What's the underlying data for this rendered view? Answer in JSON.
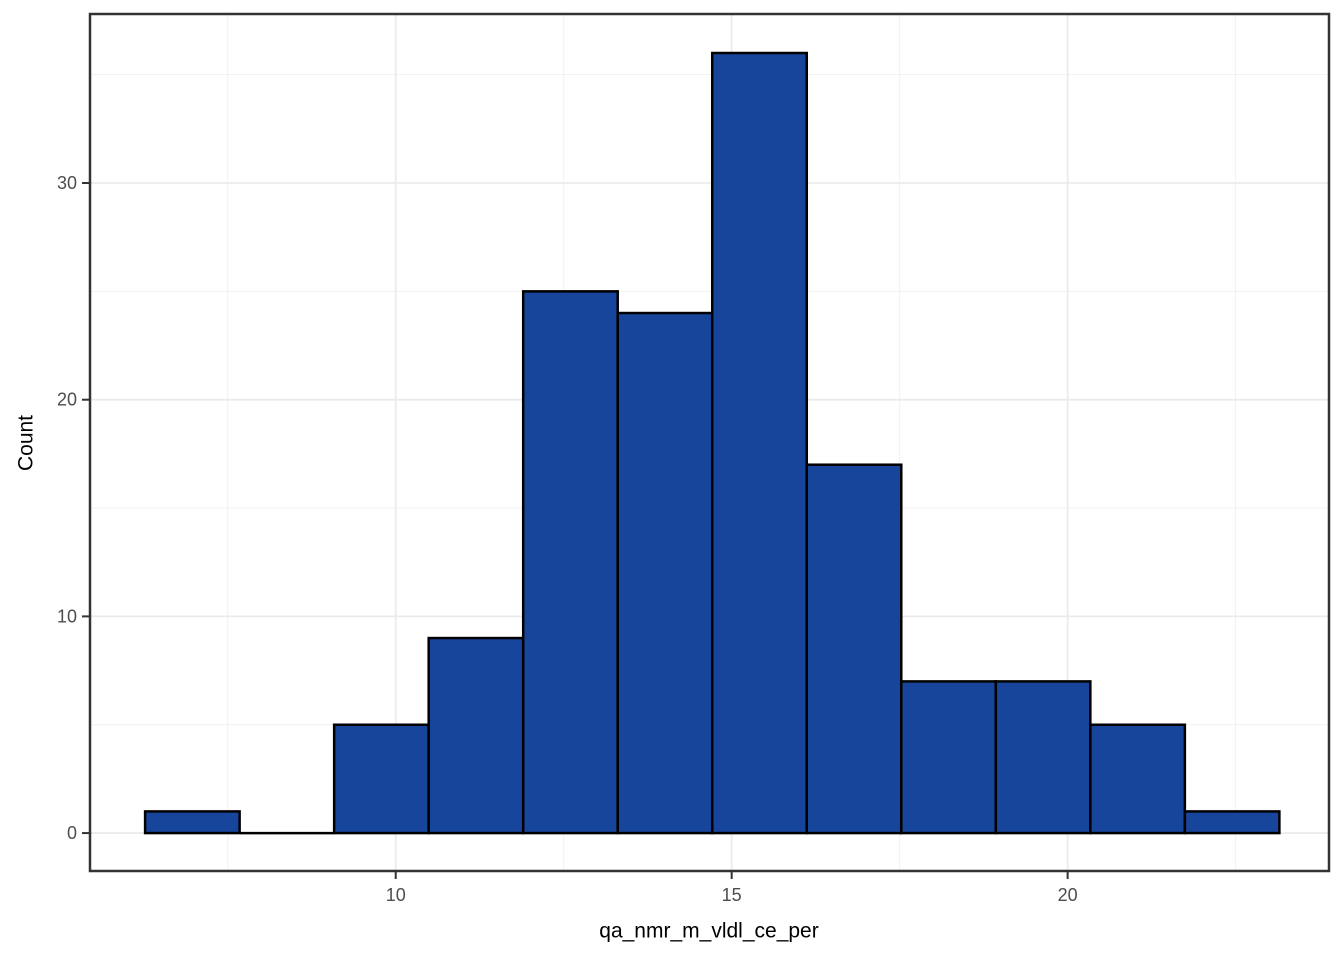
{
  "chart_data": {
    "type": "bar",
    "subtype": "histogram",
    "title": "",
    "xlabel": "qa_nmr_m_vldl_ce_per",
    "ylabel": "Count",
    "bin_start": 6.27,
    "bin_width": 1.4068,
    "counts": [
      1,
      0,
      5,
      9,
      25,
      24,
      36,
      17,
      7,
      7,
      5,
      1
    ],
    "x_ticks": [
      10,
      15,
      20
    ],
    "y_ticks": [
      0,
      10,
      20,
      30
    ],
    "x_minor_breaks": [
      7.5,
      12.5,
      17.5,
      22.5
    ],
    "y_minor_breaks": [
      5,
      15,
      25,
      35
    ],
    "xlim": [
      5.45,
      23.89
    ],
    "ylim": [
      -1.75,
      37.8
    ],
    "grid": true,
    "legend": "none",
    "colors": {
      "bar_fill": "#17459C",
      "bar_stroke": "#000000",
      "background": "#FFFFFF",
      "panel_background": "#FFFFFF",
      "panel_border": "#333333",
      "grid_major": "#EBEBEB",
      "grid_minor": "#F1F1F1",
      "tick": "#333333",
      "tick_label": "#4D4D4D",
      "axis_title": "#000000"
    }
  }
}
